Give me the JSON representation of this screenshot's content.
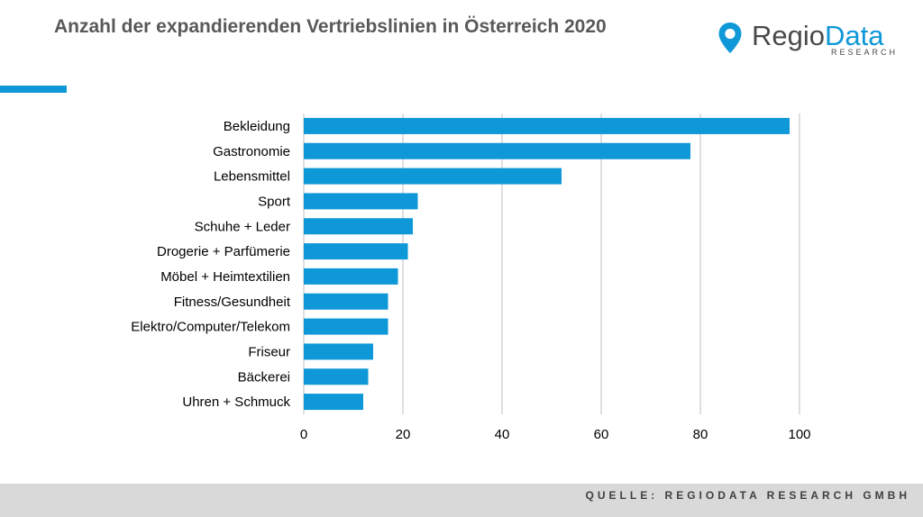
{
  "header": {
    "title": "Anzahl der expandierenden Vertriebslinien in Österreich 2020"
  },
  "logo": {
    "name_part1": "Regio",
    "name_part2": "Data",
    "tagline": "RESEARCH"
  },
  "colors": {
    "accent": "#0f98d8",
    "bar": "#0f98d8",
    "grid": "#bfbfbf",
    "footer_bg": "#d9d9d9"
  },
  "footer": {
    "source": "QUELLE: REGIODATA RESEARCH GMBH"
  },
  "chart_data": {
    "type": "bar",
    "orientation": "horizontal",
    "categories": [
      "Bekleidung",
      "Gastronomie",
      "Lebensmittel",
      "Sport",
      "Schuhe + Leder",
      "Drogerie + Parfümerie",
      "Möbel + Heimtextilien",
      "Fitness/Gesundheit",
      "Elektro/Computer/Telekom",
      "Friseur",
      "Bäckerei",
      "Uhren + Schmuck"
    ],
    "values": [
      98,
      78,
      52,
      23,
      22,
      21,
      19,
      17,
      17,
      14,
      13,
      12
    ],
    "xlim": [
      0,
      100
    ],
    "xticks": [
      0,
      20,
      40,
      60,
      80,
      100
    ],
    "grid": true,
    "legend": "none"
  }
}
